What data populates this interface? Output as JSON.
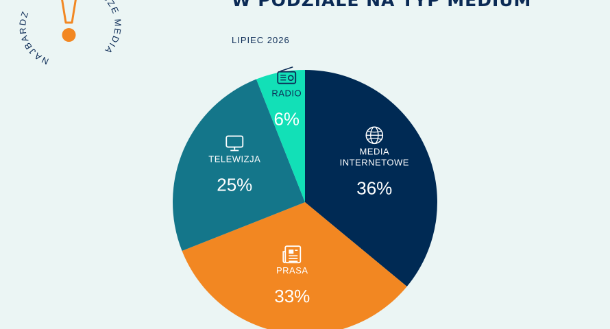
{
  "header": {
    "title": "W PODZIALE NA TYP MEDIUM",
    "date": "LIPIEC 2026"
  },
  "seal": {
    "arc_left": "NAJBARDZ",
    "arc_right": "CZE MEDIA",
    "mark_color": "#f28722"
  },
  "chart_data": {
    "type": "pie",
    "title": "W PODZIALE NA TYP MEDIUM",
    "slices": [
      {
        "label_lines": [
          "MEDIA",
          "INTERNETOWE"
        ],
        "value": 36,
        "value_label": "36%",
        "color": "#002a54",
        "icon": "globe-icon"
      },
      {
        "label_lines": [
          "PRASA"
        ],
        "value": 33,
        "value_label": "33%",
        "color": "#f28722",
        "icon": "newspaper-icon"
      },
      {
        "label_lines": [
          "TELEWIZJA"
        ],
        "value": 25,
        "value_label": "25%",
        "color": "#14768a",
        "icon": "tv-icon"
      },
      {
        "label_lines": [
          "RADIO"
        ],
        "value": 6,
        "value_label": "6%",
        "color": "#12e0b7",
        "icon": "radio-icon"
      }
    ]
  }
}
